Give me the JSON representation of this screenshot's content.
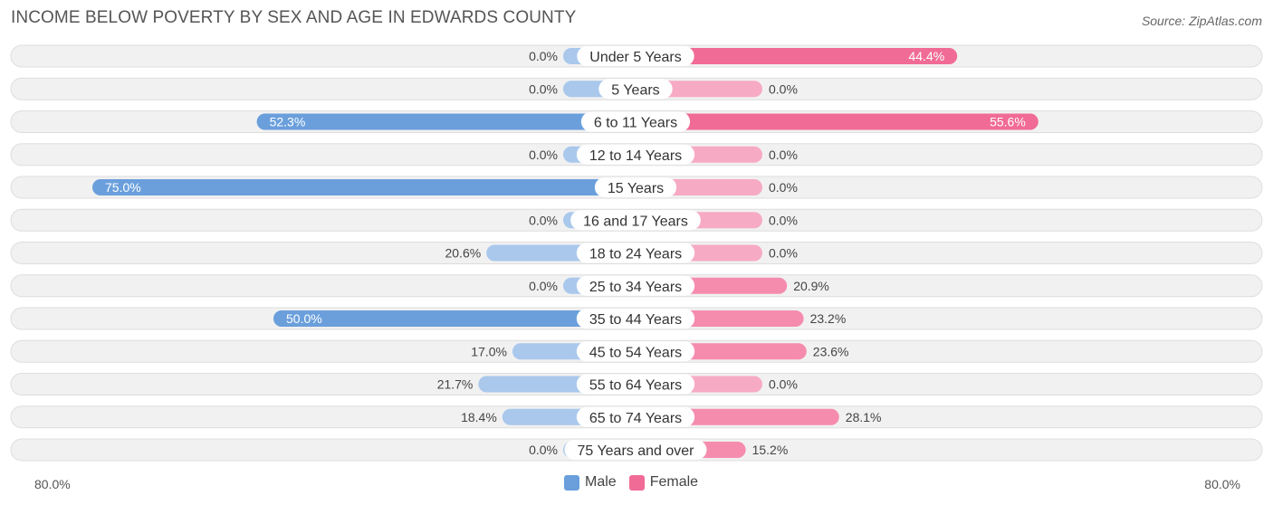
{
  "title": "INCOME BELOW POVERTY BY SEX AND AGE IN EDWARDS COUNTY",
  "source": "Source: ZipAtlas.com",
  "colors": {
    "male_strong": "#6a9fdc",
    "male_light": "#a9c8ec",
    "female_strong": "#f06b95",
    "female_light": "#f7aac3",
    "row_bg": "#f1f1f1",
    "row_border": "#dedede"
  },
  "legend": {
    "male": "Male",
    "female": "Female"
  },
  "axis": {
    "left_label": "80.0%",
    "right_label": "80.0%"
  },
  "chart_data": {
    "type": "bar",
    "orientation": "horizontal-diverging",
    "title": "INCOME BELOW POVERTY BY SEX AND AGE IN EDWARDS COUNTY",
    "xlim": [
      -80,
      80
    ],
    "categories": [
      "Under 5 Years",
      "5 Years",
      "6 to 11 Years",
      "12 to 14 Years",
      "15 Years",
      "16 and 17 Years",
      "18 to 24 Years",
      "25 to 34 Years",
      "35 to 44 Years",
      "45 to 54 Years",
      "55 to 64 Years",
      "65 to 74 Years",
      "75 Years and over"
    ],
    "series": [
      {
        "name": "Male",
        "values": [
          0.0,
          0.0,
          52.3,
          0.0,
          75.0,
          0.0,
          20.6,
          0.0,
          50.0,
          17.0,
          21.7,
          18.4,
          0.0
        ],
        "labels": [
          "0.0%",
          "0.0%",
          "52.3%",
          "0.0%",
          "75.0%",
          "0.0%",
          "20.6%",
          "0.0%",
          "50.0%",
          "17.0%",
          "21.7%",
          "18.4%",
          "0.0%"
        ]
      },
      {
        "name": "Female",
        "values": [
          44.4,
          0.0,
          55.6,
          0.0,
          0.0,
          0.0,
          0.0,
          20.9,
          23.2,
          23.6,
          0.0,
          28.1,
          15.2
        ],
        "labels": [
          "44.4%",
          "0.0%",
          "55.6%",
          "0.0%",
          "0.0%",
          "0.0%",
          "0.0%",
          "20.9%",
          "23.2%",
          "23.6%",
          "0.0%",
          "28.1%",
          "15.2%"
        ]
      }
    ]
  }
}
